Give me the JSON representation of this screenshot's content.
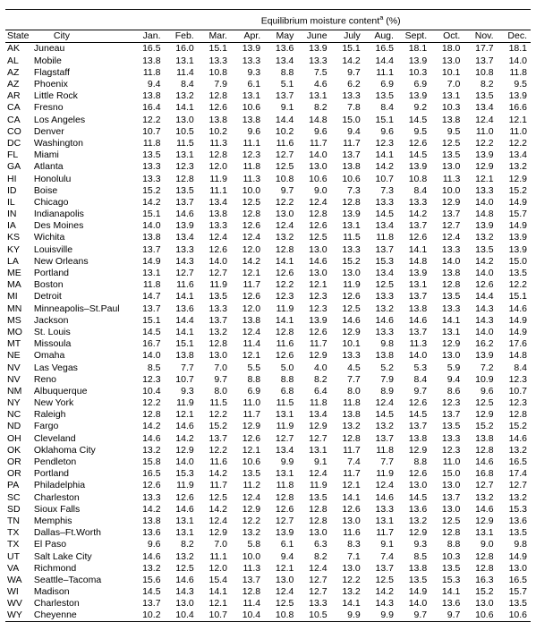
{
  "table": {
    "header_title": "Equilibrium moisture content",
    "header_sup": "a",
    "header_unit": " (%)",
    "col_state": "State",
    "col_city": "City",
    "months": [
      "Jan.",
      "Feb.",
      "Mar.",
      "Apr.",
      "May",
      "June",
      "July",
      "Aug.",
      "Sept.",
      "Oct.",
      "Nov.",
      "Dec."
    ],
    "rows": [
      {
        "state": "AK",
        "city": "Juneau",
        "v": [
          "16.5",
          "16.0",
          "15.1",
          "13.9",
          "13.6",
          "13.9",
          "15.1",
          "16.5",
          "18.1",
          "18.0",
          "17.7",
          "18.1"
        ]
      },
      {
        "state": "AL",
        "city": "Mobile",
        "v": [
          "13.8",
          "13.1",
          "13.3",
          "13.3",
          "13.4",
          "13.3",
          "14.2",
          "14.4",
          "13.9",
          "13.0",
          "13.7",
          "14.0"
        ]
      },
      {
        "state": "AZ",
        "city": "Flagstaff",
        "v": [
          "11.8",
          "11.4",
          "10.8",
          "9.3",
          "8.8",
          "7.5",
          "9.7",
          "11.1",
          "10.3",
          "10.1",
          "10.8",
          "11.8"
        ]
      },
      {
        "state": "AZ",
        "city": "Phoenix",
        "v": [
          "9.4",
          "8.4",
          "7.9",
          "6.1",
          "5.1",
          "4.6",
          "6.2",
          "6.9",
          "6.9",
          "7.0",
          "8.2",
          "9.5"
        ]
      },
      {
        "state": "AR",
        "city": "Little Rock",
        "v": [
          "13.8",
          "13.2",
          "12.8",
          "13.1",
          "13.7",
          "13.1",
          "13.3",
          "13.5",
          "13.9",
          "13.1",
          "13.5",
          "13.9"
        ]
      },
      {
        "state": "CA",
        "city": "Fresno",
        "v": [
          "16.4",
          "14.1",
          "12.6",
          "10.6",
          "9.1",
          "8.2",
          "7.8",
          "8.4",
          "9.2",
          "10.3",
          "13.4",
          "16.6"
        ]
      },
      {
        "state": "CA",
        "city": "Los Angeles",
        "v": [
          "12.2",
          "13.0",
          "13.8",
          "13.8",
          "14.4",
          "14.8",
          "15.0",
          "15.1",
          "14.5",
          "13.8",
          "12.4",
          "12.1"
        ]
      },
      {
        "state": "CO",
        "city": "Denver",
        "v": [
          "10.7",
          "10.5",
          "10.2",
          "9.6",
          "10.2",
          "9.6",
          "9.4",
          "9.6",
          "9.5",
          "9.5",
          "11.0",
          "11.0"
        ]
      },
      {
        "state": "DC",
        "city": "Washington",
        "v": [
          "11.8",
          "11.5",
          "11.3",
          "11.1",
          "11.6",
          "11.7",
          "11.7",
          "12.3",
          "12.6",
          "12.5",
          "12.2",
          "12.2"
        ]
      },
      {
        "state": "FL",
        "city": "Miami",
        "v": [
          "13.5",
          "13.1",
          "12.8",
          "12.3",
          "12.7",
          "14.0",
          "13.7",
          "14.1",
          "14.5",
          "13.5",
          "13.9",
          "13.4"
        ]
      },
      {
        "state": "GA",
        "city": "Atlanta",
        "v": [
          "13.3",
          "12.3",
          "12.0",
          "11.8",
          "12.5",
          "13.0",
          "13.8",
          "14.2",
          "13.9",
          "13.0",
          "12.9",
          "13.2"
        ]
      },
      {
        "state": "HI",
        "city": "Honolulu",
        "v": [
          "13.3",
          "12.8",
          "11.9",
          "11.3",
          "10.8",
          "10.6",
          "10.6",
          "10.7",
          "10.8",
          "11.3",
          "12.1",
          "12.9"
        ]
      },
      {
        "state": "ID",
        "city": "Boise",
        "v": [
          "15.2",
          "13.5",
          "11.1",
          "10.0",
          "9.7",
          "9.0",
          "7.3",
          "7.3",
          "8.4",
          "10.0",
          "13.3",
          "15.2"
        ]
      },
      {
        "state": "IL",
        "city": "Chicago",
        "v": [
          "14.2",
          "13.7",
          "13.4",
          "12.5",
          "12.2",
          "12.4",
          "12.8",
          "13.3",
          "13.3",
          "12.9",
          "14.0",
          "14.9"
        ]
      },
      {
        "state": "IN",
        "city": "Indianapolis",
        "v": [
          "15.1",
          "14.6",
          "13.8",
          "12.8",
          "13.0",
          "12.8",
          "13.9",
          "14.5",
          "14.2",
          "13.7",
          "14.8",
          "15.7"
        ]
      },
      {
        "state": "IA",
        "city": "Des Moines",
        "v": [
          "14.0",
          "13.9",
          "13.3",
          "12.6",
          "12.4",
          "12.6",
          "13.1",
          "13.4",
          "13.7",
          "12.7",
          "13.9",
          "14.9"
        ]
      },
      {
        "state": "KS",
        "city": "Wichita",
        "v": [
          "13.8",
          "13.4",
          "12.4",
          "12.4",
          "13.2",
          "12.5",
          "11.5",
          "11.8",
          "12.6",
          "12.4",
          "13.2",
          "13.9"
        ]
      },
      {
        "state": "KY",
        "city": "Louisville",
        "v": [
          "13.7",
          "13.3",
          "12.6",
          "12.0",
          "12.8",
          "13.0",
          "13.3",
          "13.7",
          "14.1",
          "13.3",
          "13.5",
          "13.9"
        ]
      },
      {
        "state": "LA",
        "city": "New Orleans",
        "v": [
          "14.9",
          "14.3",
          "14.0",
          "14.2",
          "14.1",
          "14.6",
          "15.2",
          "15.3",
          "14.8",
          "14.0",
          "14.2",
          "15.0"
        ]
      },
      {
        "state": "ME",
        "city": "Portland",
        "v": [
          "13.1",
          "12.7",
          "12.7",
          "12.1",
          "12.6",
          "13.0",
          "13.0",
          "13.4",
          "13.9",
          "13.8",
          "14.0",
          "13.5"
        ]
      },
      {
        "state": "MA",
        "city": "Boston",
        "v": [
          "11.8",
          "11.6",
          "11.9",
          "11.7",
          "12.2",
          "12.1",
          "11.9",
          "12.5",
          "13.1",
          "12.8",
          "12.6",
          "12.2"
        ]
      },
      {
        "state": "MI",
        "city": "Detroit",
        "v": [
          "14.7",
          "14.1",
          "13.5",
          "12.6",
          "12.3",
          "12.3",
          "12.6",
          "13.3",
          "13.7",
          "13.5",
          "14.4",
          "15.1"
        ]
      },
      {
        "state": "MN",
        "city": "Minneapolis–St.Paul",
        "v": [
          "13.7",
          "13.6",
          "13.3",
          "12.0",
          "11.9",
          "12.3",
          "12.5",
          "13.2",
          "13.8",
          "13.3",
          "14.3",
          "14.6"
        ]
      },
      {
        "state": "MS",
        "city": "Jackson",
        "v": [
          "15.1",
          "14.4",
          "13.7",
          "13.8",
          "14.1",
          "13.9",
          "14.6",
          "14.6",
          "14.6",
          "14.1",
          "14.3",
          "14.9"
        ]
      },
      {
        "state": "MO",
        "city": "St. Louis",
        "v": [
          "14.5",
          "14.1",
          "13.2",
          "12.4",
          "12.8",
          "12.6",
          "12.9",
          "13.3",
          "13.7",
          "13.1",
          "14.0",
          "14.9"
        ]
      },
      {
        "state": "MT",
        "city": "Missoula",
        "v": [
          "16.7",
          "15.1",
          "12.8",
          "11.4",
          "11.6",
          "11.7",
          "10.1",
          "9.8",
          "11.3",
          "12.9",
          "16.2",
          "17.6"
        ]
      },
      {
        "state": "NE",
        "city": "Omaha",
        "v": [
          "14.0",
          "13.8",
          "13.0",
          "12.1",
          "12.6",
          "12.9",
          "13.3",
          "13.8",
          "14.0",
          "13.0",
          "13.9",
          "14.8"
        ]
      },
      {
        "state": "NV",
        "city": "Las Vegas",
        "v": [
          "8.5",
          "7.7",
          "7.0",
          "5.5",
          "5.0",
          "4.0",
          "4.5",
          "5.2",
          "5.3",
          "5.9",
          "7.2",
          "8.4"
        ]
      },
      {
        "state": "NV",
        "city": "Reno",
        "v": [
          "12.3",
          "10.7",
          "9.7",
          "8.8",
          "8.8",
          "8.2",
          "7.7",
          "7.9",
          "8.4",
          "9.4",
          "10.9",
          "12.3"
        ]
      },
      {
        "state": "NM",
        "city": "Albuquerque",
        "v": [
          "10.4",
          "9.3",
          "8.0",
          "6.9",
          "6.8",
          "6.4",
          "8.0",
          "8.9",
          "9.7",
          "8.6",
          "9.6",
          "10.7"
        ]
      },
      {
        "state": "NY",
        "city": "New York",
        "v": [
          "12.2",
          "11.9",
          "11.5",
          "11.0",
          "11.5",
          "11.8",
          "11.8",
          "12.4",
          "12.6",
          "12.3",
          "12.5",
          "12.3"
        ]
      },
      {
        "state": "NC",
        "city": "Raleigh",
        "v": [
          "12.8",
          "12.1",
          "12.2",
          "11.7",
          "13.1",
          "13.4",
          "13.8",
          "14.5",
          "14.5",
          "13.7",
          "12.9",
          "12.8"
        ]
      },
      {
        "state": "ND",
        "city": "Fargo",
        "v": [
          "14.2",
          "14.6",
          "15.2",
          "12.9",
          "11.9",
          "12.9",
          "13.2",
          "13.2",
          "13.7",
          "13.5",
          "15.2",
          "15.2"
        ]
      },
      {
        "state": "OH",
        "city": "Cleveland",
        "v": [
          "14.6",
          "14.2",
          "13.7",
          "12.6",
          "12.7",
          "12.7",
          "12.8",
          "13.7",
          "13.8",
          "13.3",
          "13.8",
          "14.6"
        ]
      },
      {
        "state": "OK",
        "city": "Oklahoma City",
        "v": [
          "13.2",
          "12.9",
          "12.2",
          "12.1",
          "13.4",
          "13.1",
          "11.7",
          "11.8",
          "12.9",
          "12.3",
          "12.8",
          "13.2"
        ]
      },
      {
        "state": "OR",
        "city": "Pendleton",
        "v": [
          "15.8",
          "14.0",
          "11.6",
          "10.6",
          "9.9",
          "9.1",
          "7.4",
          "7.7",
          "8.8",
          "11.0",
          "14.6",
          "16.5"
        ]
      },
      {
        "state": "OR",
        "city": "Portland",
        "v": [
          "16.5",
          "15.3",
          "14.2",
          "13.5",
          "13.1",
          "12.4",
          "11.7",
          "11.9",
          "12.6",
          "15.0",
          "16.8",
          "17.4"
        ]
      },
      {
        "state": "PA",
        "city": "Philadelphia",
        "v": [
          "12.6",
          "11.9",
          "11.7",
          "11.2",
          "11.8",
          "11.9",
          "12.1",
          "12.4",
          "13.0",
          "13.0",
          "12.7",
          "12.7"
        ]
      },
      {
        "state": "SC",
        "city": "Charleston",
        "v": [
          "13.3",
          "12.6",
          "12.5",
          "12.4",
          "12.8",
          "13.5",
          "14.1",
          "14.6",
          "14.5",
          "13.7",
          "13.2",
          "13.2"
        ]
      },
      {
        "state": "SD",
        "city": "Sioux Falls",
        "v": [
          "14.2",
          "14.6",
          "14.2",
          "12.9",
          "12.6",
          "12.8",
          "12.6",
          "13.3",
          "13.6",
          "13.0",
          "14.6",
          "15.3"
        ]
      },
      {
        "state": "TN",
        "city": "Memphis",
        "v": [
          "13.8",
          "13.1",
          "12.4",
          "12.2",
          "12.7",
          "12.8",
          "13.0",
          "13.1",
          "13.2",
          "12.5",
          "12.9",
          "13.6"
        ]
      },
      {
        "state": "TX",
        "city": "Dallas–Ft.Worth",
        "v": [
          "13.6",
          "13.1",
          "12.9",
          "13.2",
          "13.9",
          "13.0",
          "11.6",
          "11.7",
          "12.9",
          "12.8",
          "13.1",
          "13.5"
        ]
      },
      {
        "state": "TX",
        "city": "El Paso",
        "v": [
          "9.6",
          "8.2",
          "7.0",
          "5.8",
          "6.1",
          "6.3",
          "8.3",
          "9.1",
          "9.3",
          "8.8",
          "9.0",
          "9.8"
        ]
      },
      {
        "state": "UT",
        "city": "Salt Lake City",
        "v": [
          "14.6",
          "13.2",
          "11.1",
          "10.0",
          "9.4",
          "8.2",
          "7.1",
          "7.4",
          "8.5",
          "10.3",
          "12.8",
          "14.9"
        ]
      },
      {
        "state": "VA",
        "city": "Richmond",
        "v": [
          "13.2",
          "12.5",
          "12.0",
          "11.3",
          "12.1",
          "12.4",
          "13.0",
          "13.7",
          "13.8",
          "13.5",
          "12.8",
          "13.0"
        ]
      },
      {
        "state": "WA",
        "city": "Seattle–Tacoma",
        "v": [
          "15.6",
          "14.6",
          "15.4",
          "13.7",
          "13.0",
          "12.7",
          "12.2",
          "12.5",
          "13.5",
          "15.3",
          "16.3",
          "16.5"
        ]
      },
      {
        "state": "WI",
        "city": "Madison",
        "v": [
          "14.5",
          "14.3",
          "14.1",
          "12.8",
          "12.4",
          "12.7",
          "13.2",
          "14.2",
          "14.9",
          "14.1",
          "15.2",
          "15.7"
        ]
      },
      {
        "state": "WV",
        "city": "Charleston",
        "v": [
          "13.7",
          "13.0",
          "12.1",
          "11.4",
          "12.5",
          "13.3",
          "14.1",
          "14.3",
          "14.0",
          "13.6",
          "13.0",
          "13.5"
        ]
      },
      {
        "state": "WY",
        "city": "Cheyenne",
        "v": [
          "10.2",
          "10.4",
          "10.7",
          "10.4",
          "10.8",
          "10.5",
          "9.9",
          "9.9",
          "9.7",
          "9.7",
          "10.6",
          "10.6"
        ]
      }
    ]
  }
}
